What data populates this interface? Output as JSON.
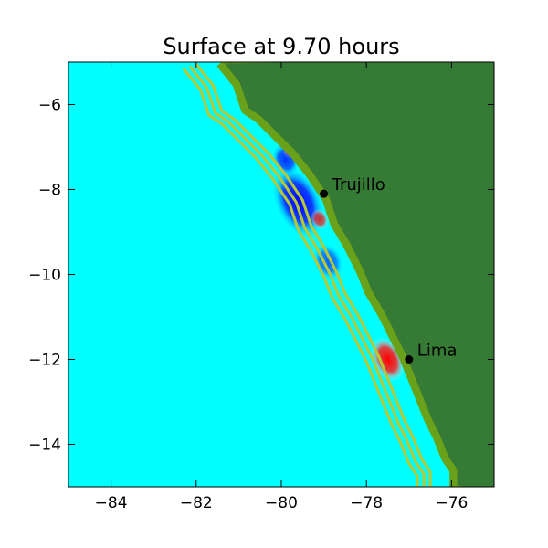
{
  "chart_data": {
    "type": "heatmap",
    "title": "Surface at 9.70 hours",
    "xlabel": "",
    "ylabel": "",
    "xlim": [
      -85,
      -75
    ],
    "ylim": [
      -15,
      -5
    ],
    "x_ticks": [
      -84,
      -82,
      -80,
      -78,
      -76
    ],
    "y_ticks": [
      -6,
      -8,
      -10,
      -12,
      -14
    ],
    "x_tick_labels": [
      "−84",
      "−82",
      "−80",
      "−78",
      "−76"
    ],
    "y_tick_labels": [
      "−6",
      "−8",
      "−10",
      "−12",
      "−14"
    ],
    "grid": false,
    "colors": {
      "ocean": "#00ffff",
      "land": "#357b35",
      "shelf": "#6aa11a",
      "contour": "#b8c832",
      "positive": "#ff0000",
      "negative": "#0000ff"
    },
    "locations": [
      {
        "name": "Trujillo",
        "lon": -79.0,
        "lat": -8.1
      },
      {
        "name": "Lima",
        "lon": -77.0,
        "lat": -12.0
      }
    ],
    "coastline": [
      [
        -81.4,
        -5.0
      ],
      [
        -81.0,
        -5.5
      ],
      [
        -80.8,
        -6.1
      ],
      [
        -80.5,
        -6.3
      ],
      [
        -80.1,
        -6.7
      ],
      [
        -79.7,
        -7.1
      ],
      [
        -79.3,
        -7.6
      ],
      [
        -78.9,
        -8.2
      ],
      [
        -78.7,
        -8.8
      ],
      [
        -78.4,
        -9.3
      ],
      [
        -78.1,
        -9.9
      ],
      [
        -77.9,
        -10.4
      ],
      [
        -77.6,
        -10.9
      ],
      [
        -77.3,
        -11.5
      ],
      [
        -77.1,
        -11.9
      ],
      [
        -76.9,
        -12.4
      ],
      [
        -76.7,
        -12.9
      ],
      [
        -76.5,
        -13.4
      ],
      [
        -76.3,
        -13.8
      ],
      [
        -76.1,
        -14.3
      ],
      [
        -75.9,
        -14.6
      ],
      [
        -75.9,
        -15.0
      ]
    ],
    "anomalies": [
      {
        "kind": "negative",
        "lon": -79.6,
        "lat": -8.3,
        "rx": 0.55,
        "ry": 0.9,
        "peak": 1.0
      },
      {
        "kind": "negative",
        "lon": -79.9,
        "lat": -7.3,
        "rx": 0.3,
        "ry": 0.4,
        "peak": 0.8
      },
      {
        "kind": "negative",
        "lon": -78.9,
        "lat": -9.7,
        "rx": 0.35,
        "ry": 0.45,
        "peak": 0.6
      },
      {
        "kind": "positive",
        "lon": -77.5,
        "lat": -12.0,
        "rx": 0.35,
        "ry": 0.55,
        "peak": 1.0
      },
      {
        "kind": "positive",
        "lon": -79.1,
        "lat": -8.7,
        "rx": 0.2,
        "ry": 0.25,
        "peak": 0.8
      },
      {
        "kind": "positive",
        "lon": -79.8,
        "lat": -7.1,
        "rx": 0.15,
        "ry": 0.15,
        "peak": 0.7
      }
    ]
  }
}
